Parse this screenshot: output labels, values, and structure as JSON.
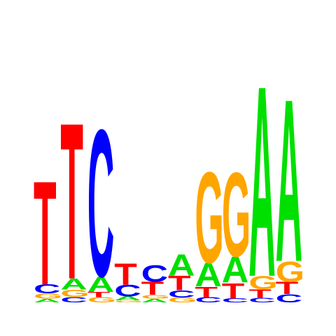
{
  "logo": {
    "type": "sequence_logo",
    "colors": {
      "A": "#00e000",
      "C": "#0000ff",
      "G": "#ffa500",
      "T": "#ff0000"
    },
    "columns": [
      {
        "stack": [
          {
            "letter": "A",
            "weight": 0.03
          },
          {
            "letter": "G",
            "weight": 0.04
          },
          {
            "letter": "C",
            "weight": 0.07
          },
          {
            "letter": "T",
            "weight": 0.82
          }
        ]
      },
      {
        "stack": [
          {
            "letter": "C",
            "weight": 0.03
          },
          {
            "letter": "G",
            "weight": 0.04
          },
          {
            "letter": "A",
            "weight": 0.06
          },
          {
            "letter": "T",
            "weight": 0.87
          }
        ]
      },
      {
        "stack": [
          {
            "letter": "G",
            "weight": 0.03
          },
          {
            "letter": "T",
            "weight": 0.03
          },
          {
            "letter": "A",
            "weight": 0.09
          },
          {
            "letter": "C",
            "weight": 0.85
          }
        ]
      },
      {
        "stack": [
          {
            "letter": "G",
            "weight": 0.05
          },
          {
            "letter": "A",
            "weight": 0.1
          },
          {
            "letter": "C",
            "weight": 0.3
          },
          {
            "letter": "T",
            "weight": 0.55
          }
        ]
      },
      {
        "stack": [
          {
            "letter": "A",
            "weight": 0.1
          },
          {
            "letter": "G",
            "weight": 0.1
          },
          {
            "letter": "T",
            "weight": 0.35
          },
          {
            "letter": "C",
            "weight": 0.45
          }
        ]
      },
      {
        "stack": [
          {
            "letter": "G",
            "weight": 0.1
          },
          {
            "letter": "C",
            "weight": 0.15
          },
          {
            "letter": "T",
            "weight": 0.3
          },
          {
            "letter": "A",
            "weight": 0.45
          }
        ]
      },
      {
        "stack": [
          {
            "letter": "C",
            "weight": 0.04
          },
          {
            "letter": "T",
            "weight": 0.08
          },
          {
            "letter": "A",
            "weight": 0.18
          },
          {
            "letter": "G",
            "weight": 0.7
          }
        ]
      },
      {
        "stack": [
          {
            "letter": "C",
            "weight": 0.03
          },
          {
            "letter": "T",
            "weight": 0.12
          },
          {
            "letter": "A",
            "weight": 0.2
          },
          {
            "letter": "G",
            "weight": 0.65
          }
        ]
      },
      {
        "stack": [
          {
            "letter": "C",
            "weight": 0.02
          },
          {
            "letter": "T",
            "weight": 0.04
          },
          {
            "letter": "G",
            "weight": 0.06
          },
          {
            "letter": "A",
            "weight": 0.88
          }
        ]
      },
      {
        "stack": [
          {
            "letter": "C",
            "weight": 0.04
          },
          {
            "letter": "T",
            "weight": 0.06
          },
          {
            "letter": "G",
            "weight": 0.1
          },
          {
            "letter": "A",
            "weight": 0.8
          }
        ]
      }
    ],
    "heights": [
      185,
      263,
      253,
      57,
      54,
      70,
      190,
      189,
      317,
      297
    ]
  }
}
